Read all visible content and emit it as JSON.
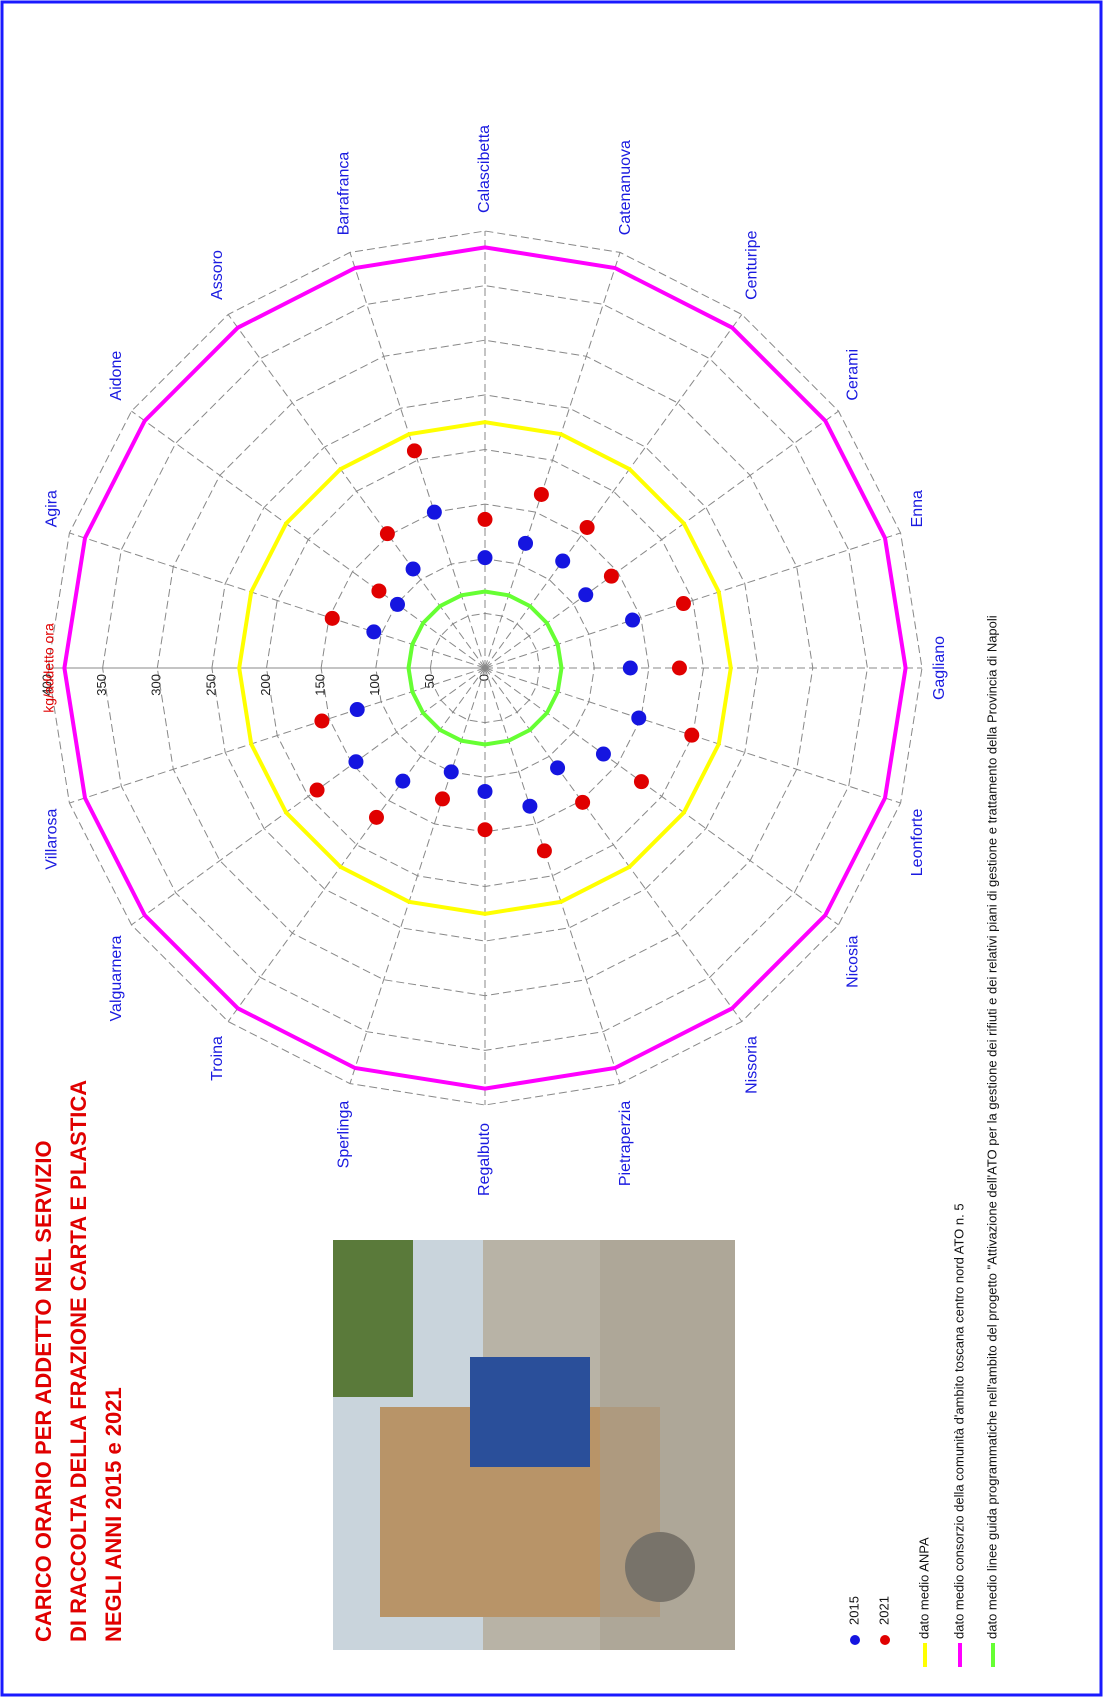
{
  "chart_data": {
    "type": "radar",
    "title": [
      "CARICO ORARIO PER ADDETTO NEL SERVIZIO",
      "DI RACCOLTA DELLA FRAZIONE CARTA E PLASTICA",
      "NEGLI ANNI 2015 e 2021"
    ],
    "axis_label": "kg/addetto ora",
    "categories": [
      null,
      "Agira",
      "Aidone",
      "Assoro",
      "Barrafranca",
      "Calascibetta",
      "Catenanuova",
      "Centuripe",
      "Cerami",
      "Enna",
      "Gagliano",
      "Leonforte",
      "Nicosia",
      "Nissoria",
      "Pietraperzia",
      "Regalbuto",
      "Sperlinga",
      "Troina",
      "Valguarnera",
      "Villarosa"
    ],
    "rlim": [
      0,
      400
    ],
    "rticks": [
      0,
      50,
      100,
      150,
      200,
      250,
      300,
      350,
      400
    ],
    "grid": true,
    "series": [
      {
        "name": "2015",
        "color": "#1515e0",
        "style": "marker",
        "values": [
          null,
          107,
          99,
          112,
          150,
          101,
          120,
          121,
          114,
          142,
          133,
          148,
          134,
          113,
          133,
          113,
          100,
          128,
          146,
          123
        ]
      },
      {
        "name": "2021",
        "color": "#e00000",
        "style": "marker",
        "values": [
          null,
          147,
          120,
          152,
          209,
          136,
          167,
          159,
          143,
          191,
          178,
          199,
          177,
          152,
          176,
          148,
          126,
          169,
          190,
          157
        ]
      },
      {
        "name": "dato medio ANPA",
        "color": "#ffff00",
        "style": "line",
        "values": [
          225,
          225,
          225,
          225,
          225,
          225,
          225,
          225,
          225,
          225,
          225,
          225,
          225,
          225,
          225,
          225,
          225,
          225,
          225,
          225
        ]
      },
      {
        "name": "dato medio consorzio della comunità d'ambito toscana centro nord ATO n. 5",
        "color": "#ff00ff",
        "style": "line",
        "values": [
          385,
          385,
          385,
          385,
          385,
          385,
          385,
          385,
          385,
          385,
          385,
          385,
          385,
          385,
          385,
          385,
          385,
          385,
          385,
          385
        ]
      },
      {
        "name": "dato medio linee guida programmatiche nell'ambito del progetto \"Attivazione dell'ATO per la gestione dei rifiuti e dei relativi piani di gestione e trattamento della Provincia di Napoli",
        "color": "#66ff33",
        "style": "line",
        "values": [
          70,
          70,
          70,
          70,
          70,
          70,
          70,
          70,
          70,
          70,
          70,
          70,
          70,
          70,
          70,
          70,
          70,
          70,
          70,
          70
        ]
      }
    ]
  }
}
